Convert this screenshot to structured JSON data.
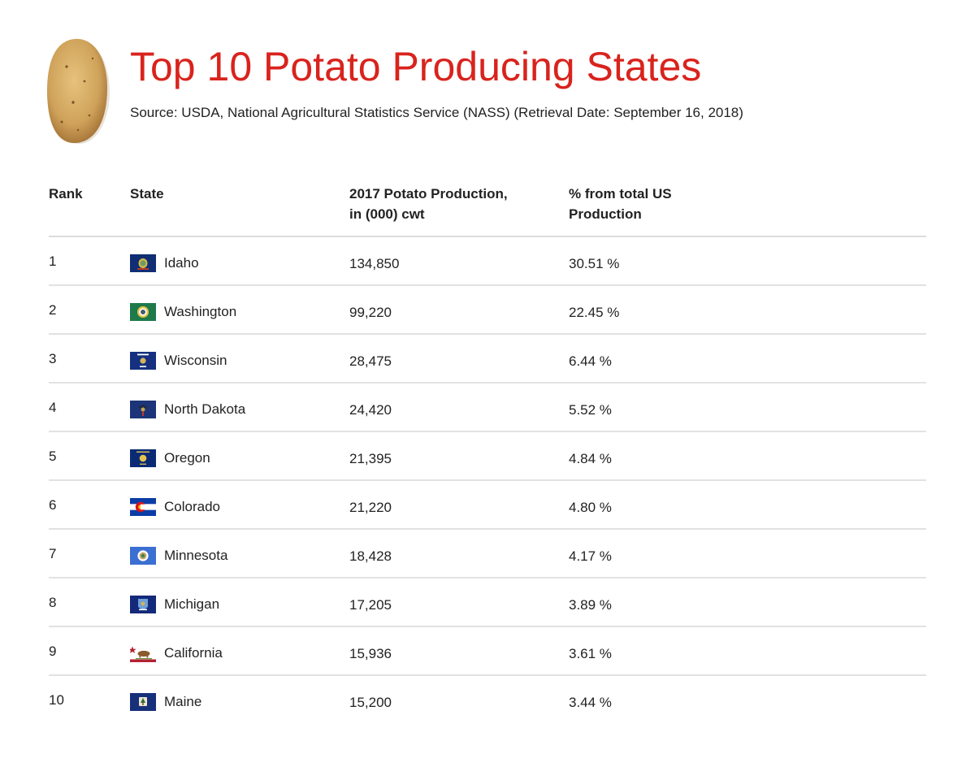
{
  "header": {
    "title": "Top 10 Potato Producing States",
    "source": "Source: USDA, National Agricultural Statistics Service (NASS) (Retrieval Date: September 16, 2018)"
  },
  "colors": {
    "title": "#d9231d",
    "divider": "#e2e2e2"
  },
  "icons": {
    "logo": "potato-icon"
  },
  "chart_data": {
    "type": "table",
    "title": "Top 10 Potato Producing States",
    "columns": [
      {
        "lines": [
          "Rank"
        ]
      },
      {
        "lines": [
          "State"
        ]
      },
      {
        "lines": [
          "2017 Potato Production,",
          "in (000) cwt"
        ]
      },
      {
        "lines": [
          "% from total US",
          "Production"
        ]
      }
    ],
    "rows": [
      {
        "rank": "1",
        "state": "Idaho",
        "flag": "idaho-flag-icon",
        "production": "134,850",
        "percent": "30.51 %"
      },
      {
        "rank": "2",
        "state": "Washington",
        "flag": "washington-flag-icon",
        "production": "99,220",
        "percent": "22.45 %"
      },
      {
        "rank": "3",
        "state": "Wisconsin",
        "flag": "wisconsin-flag-icon",
        "production": "28,475",
        "percent": "6.44 %"
      },
      {
        "rank": "4",
        "state": "North Dakota",
        "flag": "north-dakota-flag-icon",
        "production": "24,420",
        "percent": "5.52 %"
      },
      {
        "rank": "5",
        "state": "Oregon",
        "flag": "oregon-flag-icon",
        "production": "21,395",
        "percent": "4.84 %"
      },
      {
        "rank": "6",
        "state": "Colorado",
        "flag": "colorado-flag-icon",
        "production": "21,220",
        "percent": "4.80 %"
      },
      {
        "rank": "7",
        "state": "Minnesota",
        "flag": "minnesota-flag-icon",
        "production": "18,428",
        "percent": "4.17 %"
      },
      {
        "rank": "8",
        "state": "Michigan",
        "flag": "michigan-flag-icon",
        "production": "17,205",
        "percent": "3.89 %"
      },
      {
        "rank": "9",
        "state": "California",
        "flag": "california-flag-icon",
        "production": "15,936",
        "percent": "3.61 %"
      },
      {
        "rank": "10",
        "state": "Maine",
        "flag": "maine-flag-icon",
        "production": "15,200",
        "percent": "3.44 %"
      }
    ]
  }
}
